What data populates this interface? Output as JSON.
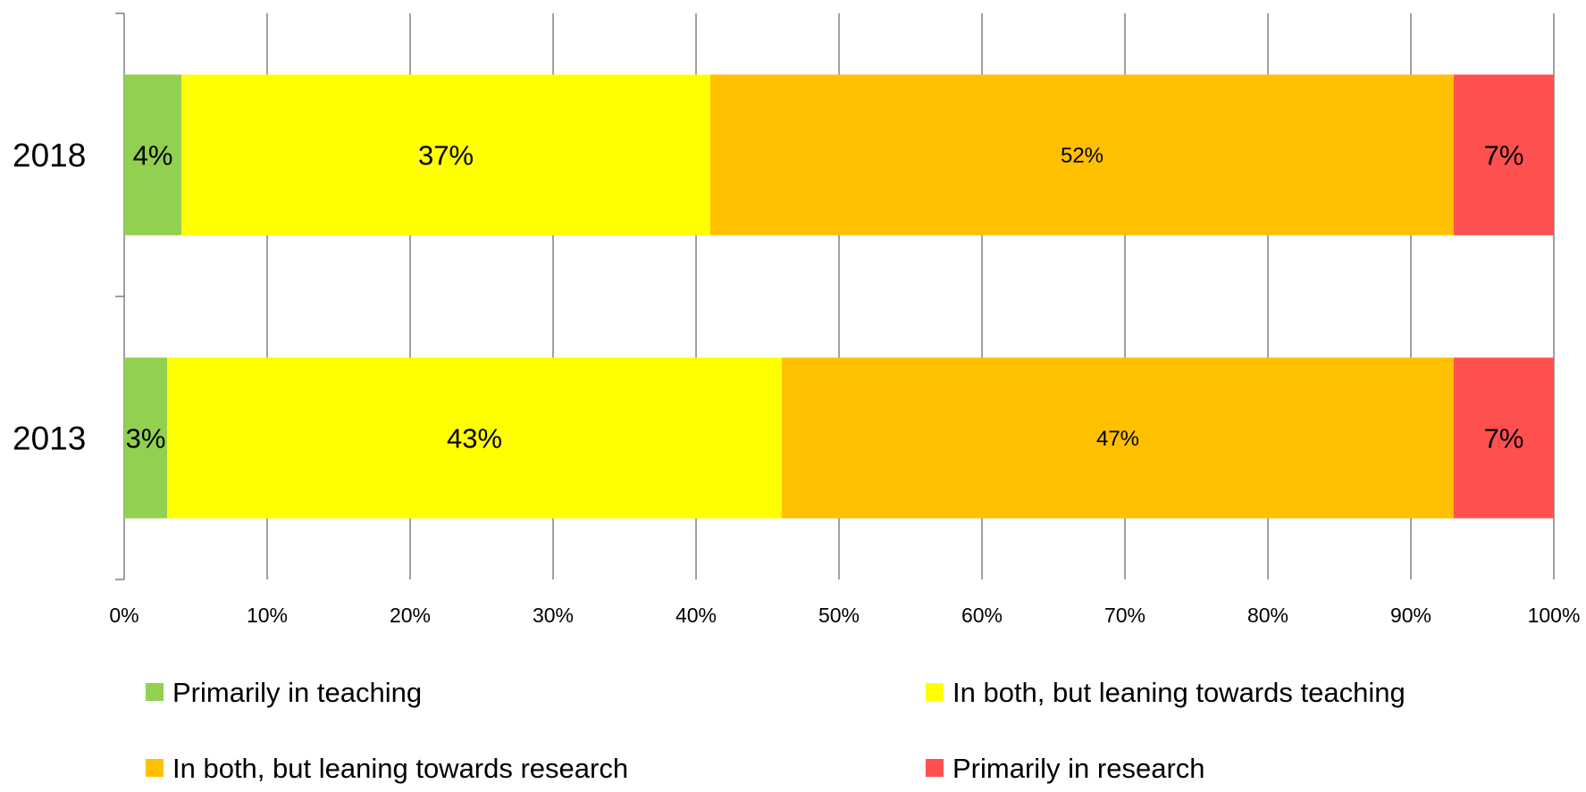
{
  "chart_data": {
    "type": "bar",
    "orientation": "horizontal",
    "stacked": true,
    "categories": [
      "2018",
      "2013"
    ],
    "series": [
      {
        "name": "Primarily in teaching",
        "values": [
          4,
          3
        ],
        "labels": [
          "4%",
          "3%"
        ],
        "color": "#92D050"
      },
      {
        "name": "In both, but leaning towards teaching",
        "values": [
          37,
          43
        ],
        "labels": [
          "37%",
          "43%"
        ],
        "color": "#FFFF00"
      },
      {
        "name": "In both, but leaning towards research",
        "values": [
          52,
          47
        ],
        "labels": [
          "52%",
          "47%"
        ],
        "color": "#FFC000"
      },
      {
        "name": "Primarily in research",
        "values": [
          7,
          7
        ],
        "labels": [
          "7%",
          "7%"
        ],
        "color": "#FF5050"
      }
    ],
    "title": "",
    "xlabel": "",
    "ylabel": "",
    "xlim": [
      0,
      100
    ],
    "xticks": [
      "0%",
      "10%",
      "20%",
      "30%",
      "40%",
      "50%",
      "60%",
      "70%",
      "80%",
      "90%",
      "100%"
    ],
    "grid": "vertical",
    "gridline_color": "#808080",
    "legend_position": "bottom"
  }
}
